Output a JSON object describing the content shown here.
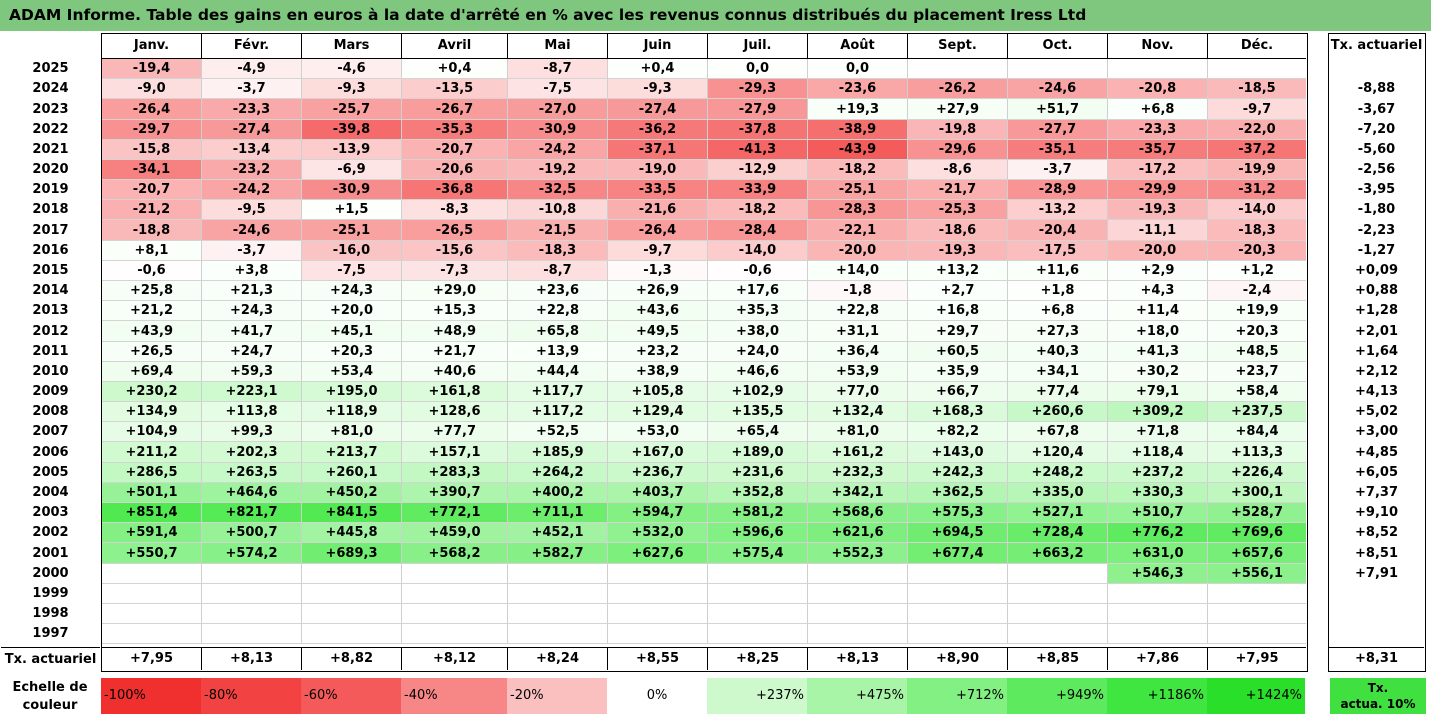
{
  "title": "ADAM Informe. Table des gains en euros à la date d'arrêté en % avec les revenus connus distribués du placement Iress Ltd",
  "months": [
    "Janv.",
    "Févr.",
    "Mars",
    "Avril",
    "Mai",
    "Juin",
    "Juil.",
    "Août",
    "Sept.",
    "Oct.",
    "Nov.",
    "Déc."
  ],
  "rate_header": "Tx. actuariel",
  "rows": [
    {
      "year": "2025",
      "values": [
        "-19,4",
        "-4,9",
        "-4,6",
        "+0,4",
        "-8,7",
        "+0,4",
        "0,0",
        "0,0",
        "",
        "",
        "",
        ""
      ],
      "rate": ""
    },
    {
      "year": "2024",
      "values": [
        "-9,0",
        "-3,7",
        "-9,3",
        "-13,5",
        "-7,5",
        "-9,3",
        "-29,3",
        "-23,6",
        "-26,2",
        "-24,6",
        "-20,8",
        "-18,5"
      ],
      "rate": "-8,88"
    },
    {
      "year": "2023",
      "values": [
        "-26,4",
        "-23,3",
        "-25,7",
        "-26,7",
        "-27,0",
        "-27,4",
        "-27,9",
        "+19,3",
        "+27,9",
        "+51,7",
        "+6,8",
        "-9,7"
      ],
      "rate": "-3,67"
    },
    {
      "year": "2022",
      "values": [
        "-29,7",
        "-27,4",
        "-39,8",
        "-35,3",
        "-30,9",
        "-36,2",
        "-37,8",
        "-38,9",
        "-19,8",
        "-27,7",
        "-23,3",
        "-22,0"
      ],
      "rate": "-7,20"
    },
    {
      "year": "2021",
      "values": [
        "-15,8",
        "-13,4",
        "-13,9",
        "-20,7",
        "-24,2",
        "-37,1",
        "-41,3",
        "-43,9",
        "-29,6",
        "-35,1",
        "-35,7",
        "-37,2"
      ],
      "rate": "-5,60"
    },
    {
      "year": "2020",
      "values": [
        "-34,1",
        "-23,2",
        "-6,9",
        "-20,6",
        "-19,2",
        "-19,0",
        "-12,9",
        "-18,2",
        "-8,6",
        "-3,7",
        "-17,2",
        "-19,9"
      ],
      "rate": "-2,56"
    },
    {
      "year": "2019",
      "values": [
        "-20,7",
        "-24,2",
        "-30,9",
        "-36,8",
        "-32,5",
        "-33,5",
        "-33,9",
        "-25,1",
        "-21,7",
        "-28,9",
        "-29,9",
        "-31,2"
      ],
      "rate": "-3,95"
    },
    {
      "year": "2018",
      "values": [
        "-21,2",
        "-9,5",
        "+1,5",
        "-8,3",
        "-10,8",
        "-21,6",
        "-18,2",
        "-28,3",
        "-25,3",
        "-13,2",
        "-19,3",
        "-14,0"
      ],
      "rate": "-1,80"
    },
    {
      "year": "2017",
      "values": [
        "-18,8",
        "-24,6",
        "-25,1",
        "-26,5",
        "-21,5",
        "-26,4",
        "-28,4",
        "-22,1",
        "-18,6",
        "-20,4",
        "-11,1",
        "-18,3"
      ],
      "rate": "-2,23"
    },
    {
      "year": "2016",
      "values": [
        "+8,1",
        "-3,7",
        "-16,0",
        "-15,6",
        "-18,3",
        "-9,7",
        "-14,0",
        "-20,0",
        "-19,3",
        "-17,5",
        "-20,0",
        "-20,3"
      ],
      "rate": "-1,27"
    },
    {
      "year": "2015",
      "values": [
        "-0,6",
        "+3,8",
        "-7,5",
        "-7,3",
        "-8,7",
        "-1,3",
        "-0,6",
        "+14,0",
        "+13,2",
        "+11,6",
        "+2,9",
        "+1,2"
      ],
      "rate": "+0,09"
    },
    {
      "year": "2014",
      "values": [
        "+25,8",
        "+21,3",
        "+24,3",
        "+29,0",
        "+23,6",
        "+26,9",
        "+17,6",
        "-1,8",
        "+2,7",
        "+1,8",
        "+4,3",
        "-2,4"
      ],
      "rate": "+0,88"
    },
    {
      "year": "2013",
      "values": [
        "+21,2",
        "+24,3",
        "+20,0",
        "+15,3",
        "+22,8",
        "+43,6",
        "+35,3",
        "+22,8",
        "+16,8",
        "+6,8",
        "+11,4",
        "+19,9"
      ],
      "rate": "+1,28"
    },
    {
      "year": "2012",
      "values": [
        "+43,9",
        "+41,7",
        "+45,1",
        "+48,9",
        "+65,8",
        "+49,5",
        "+38,0",
        "+31,1",
        "+29,7",
        "+27,3",
        "+18,0",
        "+20,3"
      ],
      "rate": "+2,01"
    },
    {
      "year": "2011",
      "values": [
        "+26,5",
        "+24,7",
        "+20,3",
        "+21,7",
        "+13,9",
        "+23,2",
        "+24,0",
        "+36,4",
        "+60,5",
        "+40,3",
        "+41,3",
        "+48,5"
      ],
      "rate": "+1,64"
    },
    {
      "year": "2010",
      "values": [
        "+69,4",
        "+59,3",
        "+53,4",
        "+40,6",
        "+44,4",
        "+38,9",
        "+46,6",
        "+53,9",
        "+35,9",
        "+34,1",
        "+30,2",
        "+23,7"
      ],
      "rate": "+2,12"
    },
    {
      "year": "2009",
      "values": [
        "+230,2",
        "+223,1",
        "+195,0",
        "+161,8",
        "+117,7",
        "+105,8",
        "+102,9",
        "+77,0",
        "+66,7",
        "+77,4",
        "+79,1",
        "+58,4"
      ],
      "rate": "+4,13"
    },
    {
      "year": "2008",
      "values": [
        "+134,9",
        "+113,8",
        "+118,9",
        "+128,6",
        "+117,2",
        "+129,4",
        "+135,5",
        "+132,4",
        "+168,3",
        "+260,6",
        "+309,2",
        "+237,5"
      ],
      "rate": "+5,02"
    },
    {
      "year": "2007",
      "values": [
        "+104,9",
        "+99,3",
        "+81,0",
        "+77,7",
        "+52,5",
        "+53,0",
        "+65,4",
        "+81,0",
        "+82,2",
        "+67,8",
        "+71,8",
        "+84,4"
      ],
      "rate": "+3,00"
    },
    {
      "year": "2006",
      "values": [
        "+211,2",
        "+202,3",
        "+213,7",
        "+157,1",
        "+185,9",
        "+167,0",
        "+189,0",
        "+161,2",
        "+143,0",
        "+120,4",
        "+118,4",
        "+113,3"
      ],
      "rate": "+4,85"
    },
    {
      "year": "2005",
      "values": [
        "+286,5",
        "+263,5",
        "+260,1",
        "+283,3",
        "+264,2",
        "+236,7",
        "+231,6",
        "+232,3",
        "+242,3",
        "+248,2",
        "+237,2",
        "+226,4"
      ],
      "rate": "+6,05"
    },
    {
      "year": "2004",
      "values": [
        "+501,1",
        "+464,6",
        "+450,2",
        "+390,7",
        "+400,2",
        "+403,7",
        "+352,8",
        "+342,1",
        "+362,5",
        "+335,0",
        "+330,3",
        "+300,1"
      ],
      "rate": "+7,37"
    },
    {
      "year": "2003",
      "values": [
        "+851,4",
        "+821,7",
        "+841,5",
        "+772,1",
        "+711,1",
        "+594,7",
        "+581,2",
        "+568,6",
        "+575,3",
        "+527,1",
        "+510,7",
        "+528,7"
      ],
      "rate": "+9,10"
    },
    {
      "year": "2002",
      "values": [
        "+591,4",
        "+500,7",
        "+445,8",
        "+459,0",
        "+452,1",
        "+532,0",
        "+596,6",
        "+621,6",
        "+694,5",
        "+728,4",
        "+776,2",
        "+769,6"
      ],
      "rate": "+8,52"
    },
    {
      "year": "2001",
      "values": [
        "+550,7",
        "+574,2",
        "+689,3",
        "+568,2",
        "+582,7",
        "+627,6",
        "+575,4",
        "+552,3",
        "+677,4",
        "+663,2",
        "+631,0",
        "+657,6"
      ],
      "rate": "+8,51"
    },
    {
      "year": "2000",
      "values": [
        "",
        "",
        "",
        "",
        "",
        "",
        "",
        "",
        "",
        "",
        "+546,3",
        "+556,1"
      ],
      "rate": "+7,91"
    },
    {
      "year": "1999",
      "values": [
        "",
        "",
        "",
        "",
        "",
        "",
        "",
        "",
        "",
        "",
        "",
        ""
      ],
      "rate": ""
    },
    {
      "year": "1998",
      "values": [
        "",
        "",
        "",
        "",
        "",
        "",
        "",
        "",
        "",
        "",
        "",
        ""
      ],
      "rate": ""
    },
    {
      "year": "1997",
      "values": [
        "",
        "",
        "",
        "",
        "",
        "",
        "",
        "",
        "",
        "",
        "",
        ""
      ],
      "rate": ""
    }
  ],
  "footer": {
    "label": "Tx. actuariel",
    "values": [
      "+7,95",
      "+8,13",
      "+8,82",
      "+8,12",
      "+8,24",
      "+8,55",
      "+8,25",
      "+8,13",
      "+8,90",
      "+8,85",
      "+7,86",
      "+7,95"
    ],
    "rate": "+8,31"
  },
  "scale": {
    "label_line1": "Echelle de",
    "label_line2": "couleur",
    "items": [
      {
        "label": "-100%",
        "color": "#f0302f"
      },
      {
        "label": "-80%",
        "color": "#f24242"
      },
      {
        "label": "-60%",
        "color": "#f45a5a"
      },
      {
        "label": "-40%",
        "color": "#f78686"
      },
      {
        "label": "-20%",
        "color": "#fac0c0"
      },
      {
        "label": "0%",
        "color": "#ffffff"
      },
      {
        "label": "+237%",
        "color": "#cdf9cd"
      },
      {
        "label": "+475%",
        "color": "#a8f5a8"
      },
      {
        "label": "+712%",
        "color": "#82f082"
      },
      {
        "label": "+949%",
        "color": "#5eea5e"
      },
      {
        "label": "+1186%",
        "color": "#3fe63f"
      },
      {
        "label": "+1424%",
        "color": "#2adf2a"
      }
    ],
    "rate_label_line1": "Tx.",
    "rate_label_line2": "actua. 10%",
    "rate_color": "#3fe03f"
  }
}
